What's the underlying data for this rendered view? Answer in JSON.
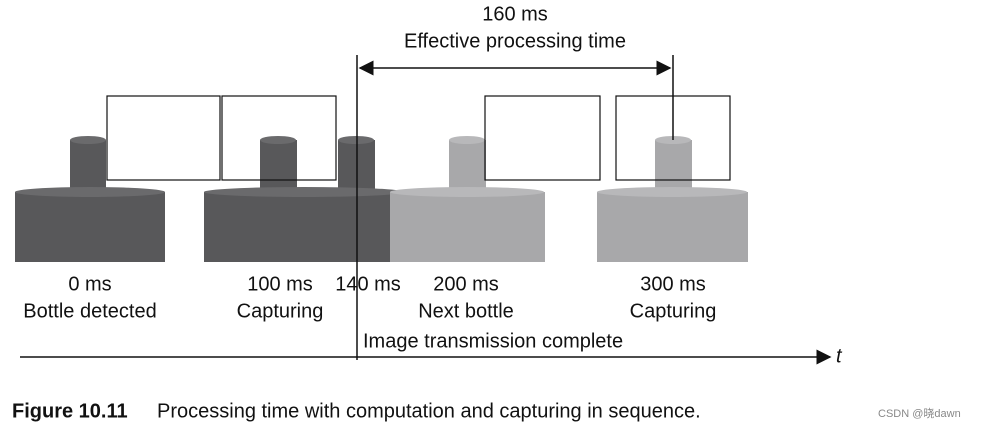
{
  "span": {
    "duration": "160 ms",
    "label": "Effective processing time"
  },
  "events": [
    {
      "time": "0 ms",
      "label": "Bottle detected"
    },
    {
      "time": "100 ms",
      "label": "Capturing"
    },
    {
      "time": "140 ms"
    },
    {
      "time": "200 ms",
      "label": "Next bottle"
    },
    {
      "time": "300 ms",
      "label": "Capturing"
    }
  ],
  "transmission_label": "Image transmission complete",
  "axis_label": "t",
  "caption": {
    "number": "Figure 10.11",
    "text": "Processing time with computation and capturing in sequence."
  },
  "watermark": "CSDN @晓dawn"
}
